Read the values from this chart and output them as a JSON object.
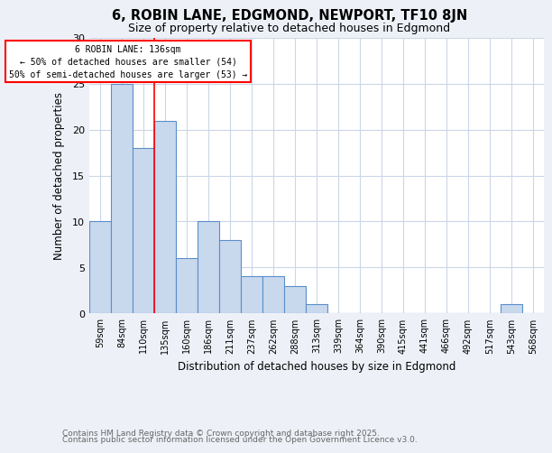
{
  "title1": "6, ROBIN LANE, EDGMOND, NEWPORT, TF10 8JN",
  "title2": "Size of property relative to detached houses in Edgmond",
  "xlabel": "Distribution of detached houses by size in Edgmond",
  "ylabel": "Number of detached properties",
  "categories": [
    "59sqm",
    "84sqm",
    "110sqm",
    "135sqm",
    "160sqm",
    "186sqm",
    "211sqm",
    "237sqm",
    "262sqm",
    "288sqm",
    "313sqm",
    "339sqm",
    "364sqm",
    "390sqm",
    "415sqm",
    "441sqm",
    "466sqm",
    "492sqm",
    "517sqm",
    "543sqm",
    "568sqm"
  ],
  "values": [
    10,
    25,
    18,
    21,
    6,
    10,
    8,
    4,
    4,
    3,
    1,
    0,
    0,
    0,
    0,
    0,
    0,
    0,
    0,
    1,
    0
  ],
  "bar_color": "#c8d8ed",
  "bar_edge_color": "#5b8fc9",
  "red_line_index": 3,
  "annotation_line1": "6 ROBIN LANE: 136sqm",
  "annotation_line2": "← 50% of detached houses are smaller (54)",
  "annotation_line3": "50% of semi-detached houses are larger (53) →",
  "ylim": [
    0,
    30
  ],
  "yticks": [
    0,
    5,
    10,
    15,
    20,
    25,
    30
  ],
  "footnote1": "Contains HM Land Registry data © Crown copyright and database right 2025.",
  "footnote2": "Contains public sector information licensed under the Open Government Licence v3.0.",
  "background_color": "#edf1f7",
  "plot_bg_color": "#ffffff",
  "grid_color": "#ccd6e8"
}
